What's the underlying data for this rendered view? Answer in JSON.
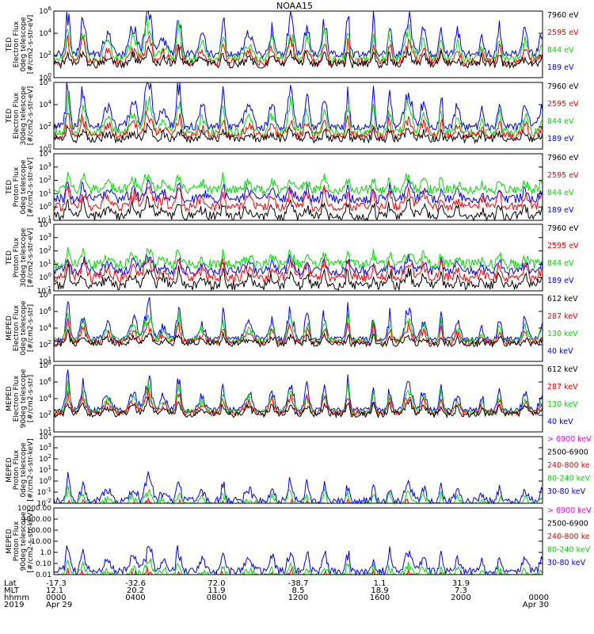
{
  "chart_data": [
    {
      "type": "line",
      "title": "NOAA15",
      "panel": "ted-electron-0deg",
      "ylabel": [
        "TED",
        "Electron Flux",
        "0deg telescope",
        "[#/cm2-s-str-eV]"
      ],
      "yscale": "log",
      "ylim": [
        1,
        1000000
      ],
      "yticks": [
        "10^0",
        "10^2",
        "10^4",
        "10^6"
      ],
      "series": [
        {
          "name": "7960 eV",
          "color": "#000000",
          "base": 1.2,
          "spike": 1.5
        },
        {
          "name": "2595 eV",
          "color": "#ff0000",
          "base": 1.4,
          "spike": 2.5
        },
        {
          "name": "844 eV",
          "color": "#00dd00",
          "base": 1.7,
          "spike": 3.6
        },
        {
          "name": "189 eV",
          "color": "#0000ff",
          "base": 2.1,
          "spike": 5.0
        }
      ]
    },
    {
      "type": "line",
      "panel": "ted-electron-30deg",
      "ylabel": [
        "TED",
        "Electron Flux",
        "30deg telescope",
        "[#/cm2-s-str-eV]"
      ],
      "yscale": "log",
      "ylim": [
        1,
        1000000
      ],
      "yticks": [
        "10^0",
        "10^2",
        "10^4",
        "10^6"
      ],
      "series": [
        {
          "name": "7960 eV",
          "color": "#000000",
          "base": 0.9,
          "spike": 1.2
        },
        {
          "name": "2595 eV",
          "color": "#ff0000",
          "base": 1.2,
          "spike": 2.3
        },
        {
          "name": "844 eV",
          "color": "#00dd00",
          "base": 1.5,
          "spike": 3.4
        },
        {
          "name": "189 eV",
          "color": "#0000ff",
          "base": 2.0,
          "spike": 4.8
        }
      ]
    },
    {
      "type": "line",
      "panel": "ted-proton-0deg",
      "ylabel": [
        "TED",
        "Proton Flux",
        "0deg telescope",
        "[#/cm2-s-str-eV]"
      ],
      "yscale": "log",
      "ylim": [
        0.1,
        10000
      ],
      "yticks": [
        "10^-1",
        "10^0",
        "10^1",
        "10^2",
        "10^3",
        "10^4"
      ],
      "series": [
        {
          "name": "7960 eV",
          "color": "#000000",
          "base": 0.3,
          "spike": 1.5
        },
        {
          "name": "2595 eV",
          "color": "#ff0000",
          "base": 1.0,
          "spike": 1.8
        },
        {
          "name": "844 eV",
          "color": "#00dd00",
          "base": 2.3,
          "spike": 1.3
        },
        {
          "name": "189 eV",
          "color": "#0000ff",
          "base": 1.6,
          "spike": 1.4
        }
      ]
    },
    {
      "type": "line",
      "panel": "ted-proton-30deg",
      "ylabel": [
        "TED",
        "Proton Flux",
        "30deg telescope",
        "[#/cm2-s-str-eV]"
      ],
      "yscale": "log",
      "ylim": [
        0.1,
        10000
      ],
      "yticks": [
        "10^-1",
        "10^0",
        "10^1",
        "10^2",
        "10^3",
        "10^4"
      ],
      "series": [
        {
          "name": "7960 eV",
          "color": "#000000",
          "base": 0.4,
          "spike": 1.5
        },
        {
          "name": "2595 eV",
          "color": "#ff0000",
          "base": 1.0,
          "spike": 1.7
        },
        {
          "name": "844 eV",
          "color": "#00dd00",
          "base": 2.0,
          "spike": 1.2
        },
        {
          "name": "189 eV",
          "color": "#0000ff",
          "base": 1.5,
          "spike": 1.2
        }
      ]
    },
    {
      "type": "line",
      "panel": "meped-electron-0deg",
      "ylabel": [
        "MEPED",
        "Electron Flux",
        "0deg telescope",
        "[#/cm2-s-str]"
      ],
      "yscale": "log",
      "ylim": [
        10,
        1000000000
      ],
      "yticks": [
        "10^1",
        "10^2",
        "10^4",
        "10^6",
        "10^8"
      ],
      "series": [
        {
          "name": "612 keV",
          "color": "#000000",
          "base": 2.1,
          "spike": 1.5
        },
        {
          "name": "287 keV",
          "color": "#ff0000",
          "base": 2.3,
          "spike": 2.6
        },
        {
          "name": "130 keV",
          "color": "#00dd00",
          "base": 2.5,
          "spike": 3.6
        },
        {
          "name": "40 keV",
          "color": "#0000ff",
          "base": 2.6,
          "spike": 5.0
        }
      ]
    },
    {
      "type": "line",
      "panel": "meped-electron-90deg",
      "ylabel": [
        "MEPED",
        "Electron Flux",
        "90deg telescope",
        "[#/cm2-s-str]"
      ],
      "yscale": "log",
      "ylim": [
        10,
        1000000000
      ],
      "yticks": [
        "10^1",
        "10^2",
        "10^4",
        "10^6",
        "10^8"
      ],
      "series": [
        {
          "name": "612 keV",
          "color": "#000000",
          "base": 2.1,
          "spike": 2.0
        },
        {
          "name": "287 keV",
          "color": "#ff0000",
          "base": 2.3,
          "spike": 2.8
        },
        {
          "name": "130 keV",
          "color": "#00dd00",
          "base": 2.4,
          "spike": 3.6
        },
        {
          "name": "40 keV",
          "color": "#0000ff",
          "base": 2.6,
          "spike": 4.5
        }
      ]
    },
    {
      "type": "line",
      "panel": "meped-proton-0deg",
      "ylabel": [
        "MEPED",
        "Proton Flux",
        "0deg telescope",
        "[#/cm2-s-str-keV]"
      ],
      "yscale": "log",
      "ylim": [
        0.01,
        10000
      ],
      "yticks": [
        "10^-2",
        "10^-1",
        "10^0",
        "10^1",
        "10^2",
        "10^3",
        "10^4"
      ],
      "series": [
        {
          "name": "> 6900 keV",
          "color": "#ff00ff",
          "base": -1.5,
          "spike": 0.8
        },
        {
          "name": "2500-6900",
          "color": "#000000",
          "base": -1.6,
          "spike": 1.2
        },
        {
          "name": "240-800 ke",
          "color": "#ff0000",
          "base": -1.0,
          "spike": 1.5
        },
        {
          "name": "80-240 keV",
          "color": "#00dd00",
          "base": -0.2,
          "spike": 1.6
        },
        {
          "name": "30-80 keV",
          "color": "#0000ff",
          "base": 0.2,
          "spike": 2.4
        }
      ]
    },
    {
      "type": "line",
      "panel": "meped-proton-90deg",
      "ylabel": [
        "MEPED",
        "Proton Flux",
        "90deg telescope",
        "[#/cm2-s-str-keV]"
      ],
      "yscale": "log",
      "ylim": [
        0.01,
        10000
      ],
      "yticks": [
        "0.01",
        "0.10",
        "1.0",
        "10.00",
        "100.00",
        "1000.00",
        "10000.00"
      ],
      "series": [
        {
          "name": "> 6900 keV",
          "color": "#ff00ff",
          "base": -1.5,
          "spike": 0.8
        },
        {
          "name": "2500-6900",
          "color": "#000000",
          "base": -1.6,
          "spike": 1.2
        },
        {
          "name": "240-800 ke",
          "color": "#ff0000",
          "base": -0.9,
          "spike": 1.5
        },
        {
          "name": "80-240 keV",
          "color": "#00dd00",
          "base": -0.2,
          "spike": 1.6
        },
        {
          "name": "30-80 keV",
          "color": "#0000ff",
          "base": 0.3,
          "spike": 2.5
        }
      ]
    }
  ],
  "x_axis": {
    "row_labels": [
      "Lat",
      "MLT",
      "hhmm",
      "2019"
    ],
    "ticks": [
      {
        "frac": 0.0,
        "lat": "-17.3",
        "mlt": "12.1",
        "hhmm": "0000",
        "date": "Apr 29"
      },
      {
        "frac": 0.167,
        "lat": "-32.6",
        "mlt": "20.2",
        "hhmm": "0400",
        "date": ""
      },
      {
        "frac": 0.333,
        "lat": "72.0",
        "mlt": "11.9",
        "hhmm": "0800",
        "date": ""
      },
      {
        "frac": 0.5,
        "lat": "-38.7",
        "mlt": "8.5",
        "hhmm": "1200",
        "date": ""
      },
      {
        "frac": 0.667,
        "lat": "1.1",
        "mlt": "18.9",
        "hhmm": "1600",
        "date": ""
      },
      {
        "frac": 0.833,
        "lat": "31.9",
        "mlt": "7.3",
        "hhmm": "2000",
        "date": ""
      },
      {
        "frac": 1.0,
        "lat": "",
        "mlt": "",
        "hhmm": "0000",
        "date": "Apr 30"
      }
    ]
  }
}
